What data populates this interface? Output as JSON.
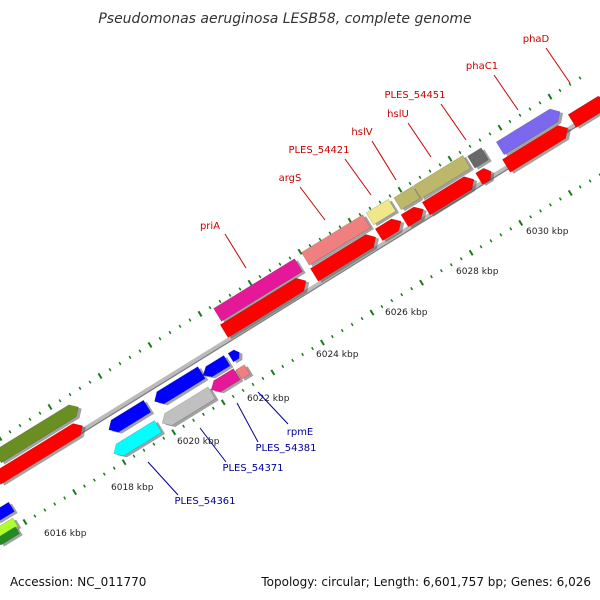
{
  "title": "Pseudomonas aeruginosa LESB58, complete genome",
  "accession": "Accession: NC_011770",
  "summary": "Topology: circular; Length: 6,601,757 bp; Genes: 6,026",
  "colors": {
    "forward_label": "#cc0000",
    "reverse_label": "#000099",
    "cds": "#ff0000",
    "backbone": "#999999",
    "tick_green": "#1a7a1a",
    "tick_dark": "#222222"
  },
  "scale": {
    "tick_labels": [
      "6016 kbp",
      "6018 kbp",
      "6020 kbp",
      "6022 kbp",
      "6024 kbp",
      "6026 kbp",
      "6028 kbp",
      "6030 kbp"
    ]
  },
  "forward_genes": [
    {
      "name": "priA",
      "color": "#e6189a"
    },
    {
      "name": "argS",
      "color": "#f08080"
    },
    {
      "name": "PLES_54421",
      "color": "#f0e68c"
    },
    {
      "name": "hslV",
      "color": "#bdb76b"
    },
    {
      "name": "hslU",
      "color": "#bdb76b"
    },
    {
      "name": "PLES_54451",
      "color": "#696969"
    },
    {
      "name": "phaC1",
      "color": "#7b68ee"
    },
    {
      "name": "phaD",
      "color": "#ff0000"
    }
  ],
  "reverse_genes": [
    {
      "name": "PLES_54361",
      "color": "#00ffff"
    },
    {
      "name": "PLES_54371",
      "color": "#c0c0c0"
    },
    {
      "name": "PLES_54381",
      "color": "#e6189a"
    },
    {
      "name": "rpmE",
      "color": "#f08080"
    }
  ],
  "other_features": [
    {
      "name": "olive-gene",
      "color": "#6b8e23"
    },
    {
      "name": "blue-gene",
      "color": "#0000ff"
    },
    {
      "name": "lime-gene",
      "color": "#adff2f"
    },
    {
      "name": "green-gene",
      "color": "#228b22"
    }
  ]
}
